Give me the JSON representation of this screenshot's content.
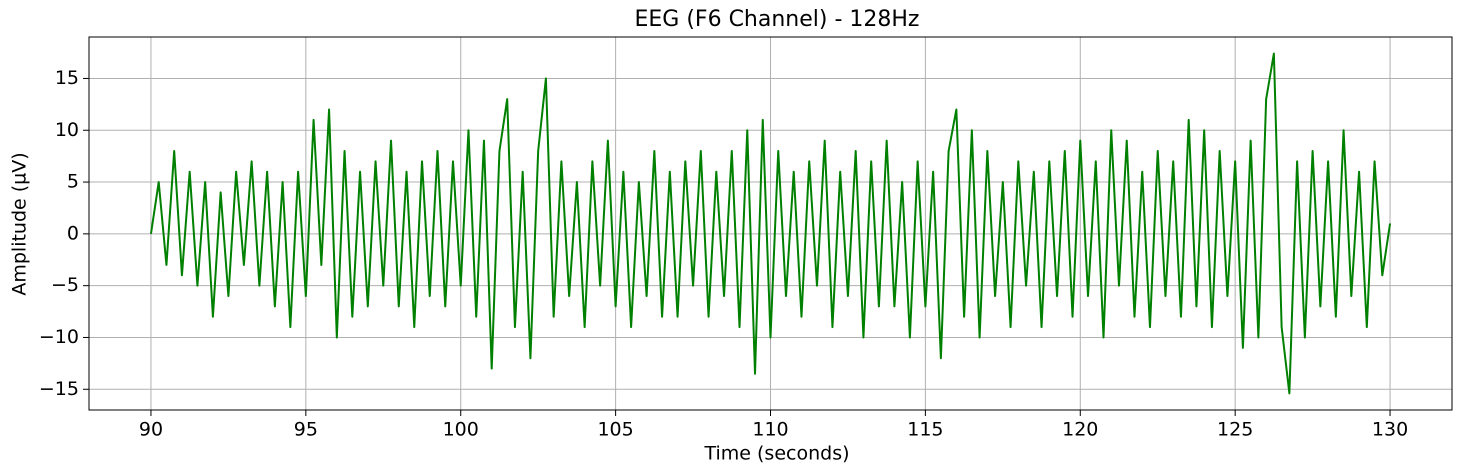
{
  "chart_data": {
    "type": "line",
    "title": "EEG (F6 Channel) - 128Hz",
    "x_label": "Time (seconds)",
    "y_label": "Amplitude (µV)",
    "color": "#008000",
    "grid": true,
    "xlim": [
      88,
      132
    ],
    "ylim": [
      -17,
      19
    ],
    "xticks": [
      90,
      95,
      100,
      105,
      110,
      115,
      120,
      125,
      130
    ],
    "yticks": [
      {
        "value": -15,
        "label": "−15"
      },
      {
        "value": -10,
        "label": "−10"
      },
      {
        "value": -5,
        "label": "−5"
      },
      0,
      5,
      10,
      15
    ],
    "x": [
      90,
      90.25,
      90.5,
      90.75,
      91,
      91.25,
      91.5,
      91.75,
      92,
      92.25,
      92.5,
      92.75,
      93,
      93.25,
      93.5,
      93.75,
      94,
      94.25,
      94.5,
      94.75,
      95,
      95.25,
      95.5,
      95.75,
      96,
      96.25,
      96.5,
      96.75,
      97,
      97.25,
      97.5,
      97.75,
      98,
      98.25,
      98.5,
      98.75,
      99,
      99.25,
      99.5,
      99.75,
      100,
      100.25,
      100.5,
      100.75,
      101,
      101.25,
      101.5,
      101.75,
      102,
      102.25,
      102.5,
      102.75,
      103,
      103.25,
      103.5,
      103.75,
      104,
      104.25,
      104.5,
      104.75,
      105,
      105.25,
      105.5,
      105.75,
      106,
      106.25,
      106.5,
      106.75,
      107,
      107.25,
      107.5,
      107.75,
      108,
      108.25,
      108.5,
      108.75,
      109,
      109.25,
      109.5,
      109.75,
      110,
      110.25,
      110.5,
      110.75,
      111,
      111.25,
      111.5,
      111.75,
      112,
      112.25,
      112.5,
      112.75,
      113,
      113.25,
      113.5,
      113.75,
      114,
      114.25,
      114.5,
      114.75,
      115,
      115.25,
      115.5,
      115.75,
      116,
      116.25,
      116.5,
      116.75,
      117,
      117.25,
      117.5,
      117.75,
      118,
      118.25,
      118.5,
      118.75,
      119,
      119.25,
      119.5,
      119.75,
      120,
      120.25,
      120.5,
      120.75,
      121,
      121.25,
      121.5,
      121.75,
      122,
      122.25,
      122.5,
      122.75,
      123,
      123.25,
      123.5,
      123.75,
      124,
      124.25,
      124.5,
      124.75,
      125,
      125.25,
      125.5,
      125.75,
      126,
      126.25,
      126.5,
      126.75,
      127,
      127.25,
      127.5,
      127.75,
      128,
      128.25,
      128.5,
      128.75,
      129,
      129.25,
      129.5,
      129.75,
      130
    ],
    "values": [
      0,
      5,
      -3,
      8,
      -4,
      6,
      -5,
      5,
      -8,
      4,
      -6,
      6,
      -3,
      7,
      -5,
      6,
      -7,
      5,
      -9,
      6,
      -6,
      11,
      -3,
      12,
      -10,
      8,
      -8,
      6,
      -7,
      7,
      -5,
      9,
      -7,
      6,
      -9,
      7,
      -6,
      8,
      -7,
      7,
      -5,
      10,
      -8,
      9,
      -13,
      8,
      13,
      -9,
      6,
      -12,
      8,
      15,
      -8,
      7,
      -6,
      5,
      -9,
      7,
      -5,
      9,
      -7,
      6,
      -9,
      5,
      -6,
      8,
      -8,
      6,
      -8,
      7,
      -5,
      8,
      -8,
      6,
      -6,
      8,
      -9,
      10,
      -13.5,
      11,
      -10,
      8,
      -6,
      6,
      -8,
      7,
      -5,
      9,
      -9,
      6,
      -6,
      8,
      -10,
      7,
      -7,
      9,
      -7,
      5,
      -10,
      7,
      -7,
      6,
      -12,
      8,
      12,
      -8,
      10,
      -10,
      8,
      -6,
      5,
      -9,
      7,
      -5,
      6,
      -9,
      7,
      -6,
      8,
      -8,
      9,
      -6,
      7,
      -10,
      10,
      -5,
      9,
      -8,
      6,
      -9,
      8,
      -6,
      7,
      -8,
      11,
      -7,
      10,
      -9,
      8,
      -6,
      7,
      -11,
      9,
      -10,
      13,
      17.4,
      -9,
      -15.4,
      7,
      -10,
      8,
      -7,
      7,
      -8,
      10,
      -6,
      6,
      -9,
      7,
      -4,
      1
    ]
  }
}
